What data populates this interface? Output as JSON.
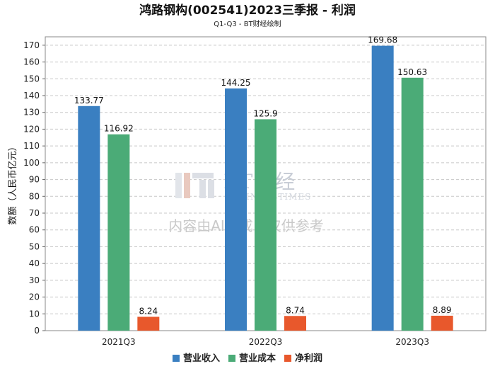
{
  "chart_data": {
    "type": "bar",
    "title": "鸿路钢构(002541)2023三季报 - 利润",
    "subtitle": "Q1-Q3 - BT财经绘制",
    "ylabel": "数额（人民币亿元）",
    "xlabel": "",
    "categories": [
      "2021Q3",
      "2022Q3",
      "2023Q3"
    ],
    "ylim": [
      0,
      175
    ],
    "yticks": [
      0,
      10,
      20,
      30,
      40,
      50,
      60,
      70,
      80,
      90,
      100,
      110,
      120,
      130,
      140,
      150,
      160,
      170
    ],
    "grid": true,
    "legend_position": "bottom-center",
    "series": [
      {
        "name": "营业收入",
        "color": "#3a7fc1",
        "values": [
          133.77,
          144.25,
          169.68
        ],
        "labels": [
          "133.77",
          "144.25",
          "169.68"
        ]
      },
      {
        "name": "营业成本",
        "color": "#4bab77",
        "values": [
          116.92,
          125.9,
          150.63
        ],
        "labels": [
          "116.92",
          "125.9",
          "150.63"
        ]
      },
      {
        "name": "净利润",
        "color": "#e8582c",
        "values": [
          8.24,
          8.74,
          8.89
        ],
        "labels": [
          "8.24",
          "8.74",
          "8.89"
        ]
      }
    ]
  },
  "watermark": {
    "logo_text": "BT财经",
    "logo_subtext": "BUSINESSTIMES",
    "note": "内容由AI生成，仅供参考"
  }
}
